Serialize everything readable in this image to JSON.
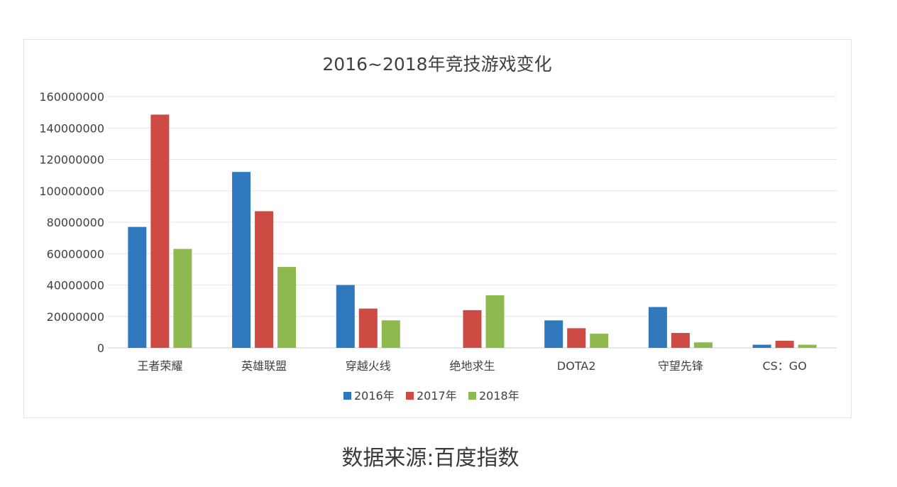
{
  "chart_data": {
    "type": "bar",
    "title": "2016~2018年竞技游戏变化",
    "categories": [
      "王者荣耀",
      "英雄联盟",
      "穿越火线",
      "绝地求生",
      "DOTA2",
      "守望先锋",
      "CS：GO"
    ],
    "series": [
      {
        "name": "2016年",
        "color": "#2f78bd",
        "values": [
          77000000,
          112000000,
          40000000,
          0,
          17500000,
          26000000,
          2000000
        ]
      },
      {
        "name": "2017年",
        "color": "#cd4b43",
        "values": [
          148500000,
          87000000,
          25000000,
          24000000,
          12500000,
          9500000,
          4500000
        ]
      },
      {
        "name": "2018年",
        "color": "#8db94f",
        "values": [
          63000000,
          51500000,
          17500000,
          33500000,
          9000000,
          3500000,
          2000000
        ]
      }
    ],
    "yticks": [
      "0",
      "20000000",
      "40000000",
      "60000000",
      "80000000",
      "100000000",
      "120000000",
      "140000000",
      "160000000"
    ],
    "ylim": [
      0,
      160000000
    ],
    "grid": true,
    "legend_position": "bottom"
  },
  "caption": "数据来源:百度指数"
}
